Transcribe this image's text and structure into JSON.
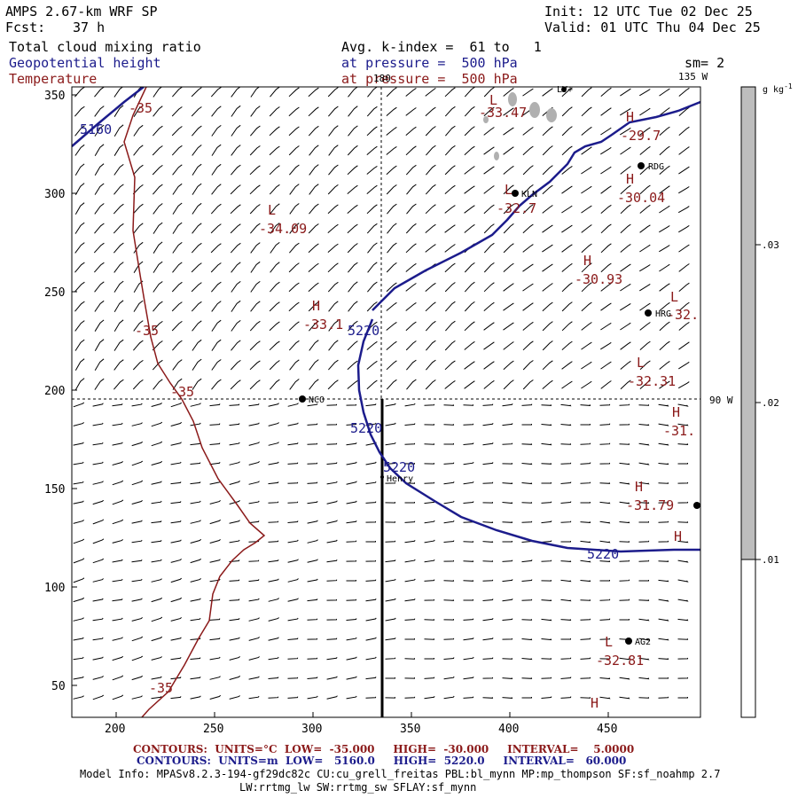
{
  "header": {
    "model": "AMPS 2.67-km WRF SP",
    "fcst_label": "Fcst:",
    "fcst_value": "37 h",
    "init": "Init: 12 UTC Tue 02 Dec 25",
    "valid": "Valid: 01 UTC Thu 04 Dec 25",
    "field1": "Total cloud mixing ratio",
    "field2": "Geopotential height",
    "field3": "Temperature",
    "avg": "Avg. k-index =  61 to   1",
    "pressure1": "at pressure =  500 hPa",
    "pressure2": "at pressure =  500 hPa",
    "sm": "sm= 2"
  },
  "axes": {
    "x_ticks": [
      "200",
      "250",
      "300",
      "350",
      "400",
      "450"
    ],
    "y_ticks": [
      "350",
      "300",
      "250",
      "200",
      "150",
      "100",
      "50"
    ],
    "lon_180": "180",
    "lon_135w": "135 W",
    "lon_90w": "90 W"
  },
  "colorbar": {
    "unit": "g kg",
    "unit_sup": "-1",
    "labels": [
      ".03",
      ".02",
      ".01"
    ]
  },
  "height_labels": [
    "5160",
    "5220",
    "5220",
    "5220",
    "5220"
  ],
  "temp_labels": [
    "-35",
    "-35",
    "-35",
    "-35"
  ],
  "extrema": [
    {
      "letter": "L",
      "value": "-34.09"
    },
    {
      "letter": "H",
      "value": "-33.1"
    },
    {
      "letter": "L",
      "value": "-33.47"
    },
    {
      "letter": "H",
      "value": "-29.7"
    },
    {
      "letter": "H",
      "value": "-30.04"
    },
    {
      "letter": "L",
      "value": "-32.7"
    },
    {
      "letter": "H",
      "value": "-30.93"
    },
    {
      "letter": "L",
      "value": "-32."
    },
    {
      "letter": "L",
      "value": "-32.31"
    },
    {
      "letter": "H",
      "value": "-31."
    },
    {
      "letter": "H",
      "value": "-31.79"
    },
    {
      "letter": "H",
      "value": ""
    },
    {
      "letter": "L",
      "value": "-32.81"
    },
    {
      "letter": "H",
      "value": ""
    }
  ],
  "stations": [
    "NCO",
    "Henry",
    "KLN",
    "RDG",
    "HRG",
    "AG2",
    "LV+"
  ],
  "footer": {
    "temp_line": "CONTOURS:  UNITS=°C  LOW=  -35.000     HIGH=  -30.000     INTERVAL=    5.0000",
    "height_line": "CONTOURS:  UNITS=m  LOW=   5160.0     HIGH=  5220.0     INTERVAL=   60.000",
    "model_info": "Model Info: MPASv8.2.3-194-gf29dc82c CU:cu_grell_freitas PBL:bl_mynn MP:mp_thompson SF:sf_noahmp 2.7",
    "model_info2": "LW:rrtmg_lw SW:rrtmg_sw SFLAY:sf_mynn"
  },
  "colors": {
    "height_contour": "#1c1c8c",
    "temperature_contour": "#8b1a1a",
    "colorbar_fill": "#bdbdbd"
  }
}
